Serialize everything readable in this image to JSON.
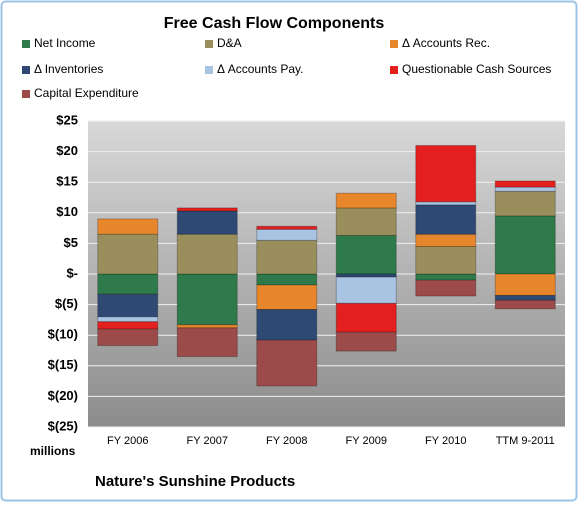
{
  "chart_data": {
    "type": "stacked_bar",
    "title": "Free Cash Flow Components",
    "categories": [
      "FY 2006",
      "FY 2007",
      "FY 2008",
      "FY 2009",
      "FY 2010",
      "TTM 9-2011"
    ],
    "series": [
      {
        "name": "Net Income",
        "color": "#2e7a4a",
        "values": [
          -3.3,
          -8.3,
          -1.8,
          6.3,
          -1,
          9.5
        ]
      },
      {
        "name": "D&A",
        "color": "#9a8f5c",
        "values": [
          6.5,
          6.5,
          5.5,
          4.5,
          4.5,
          4
        ]
      },
      {
        "name": "Δ Accounts Rec.",
        "color": "#e8862c",
        "values": [
          2.5,
          -0.5,
          -4,
          2.4,
          2,
          -3.5
        ]
      },
      {
        "name": "Δ Inventories",
        "color": "#2e4a74",
        "values": [
          -3.7,
          3.8,
          -5,
          -0.5,
          4.8,
          -0.8
        ]
      },
      {
        "name": "Δ Accounts Pay.",
        "color": "#a9c3e2",
        "values": [
          -0.8,
          0,
          1.8,
          -4.3,
          0.5,
          0.7
        ]
      },
      {
        "name": "Questionable Cash Sources",
        "color": "#e3201f",
        "values": [
          -1.2,
          0.5,
          0.5,
          -4.7,
          9.2,
          1
        ]
      },
      {
        "name": "Capital Expenditure",
        "color": "#9c4a4a",
        "values": [
          -2.7,
          -4.7,
          -7.5,
          -3.1,
          -2.6,
          -1.4
        ]
      }
    ],
    "ylim": [
      -25,
      25
    ],
    "yticks": [
      {
        "value": 25,
        "label": "$25"
      },
      {
        "value": 20,
        "label": "$20"
      },
      {
        "value": 15,
        "label": "$15"
      },
      {
        "value": 10,
        "label": "$10"
      },
      {
        "value": 5,
        "label": "$5"
      },
      {
        "value": 0,
        "label": "$-"
      },
      {
        "value": -5,
        "label": "$(5)"
      },
      {
        "value": -10,
        "label": "$(10)"
      },
      {
        "value": -15,
        "label": "$(15)"
      },
      {
        "value": -20,
        "label": "$(20)"
      },
      {
        "value": -25,
        "label": "$(25)"
      }
    ],
    "y_unit_label": "millions",
    "footer": "Nature's Sunshine Products",
    "grid": true
  }
}
